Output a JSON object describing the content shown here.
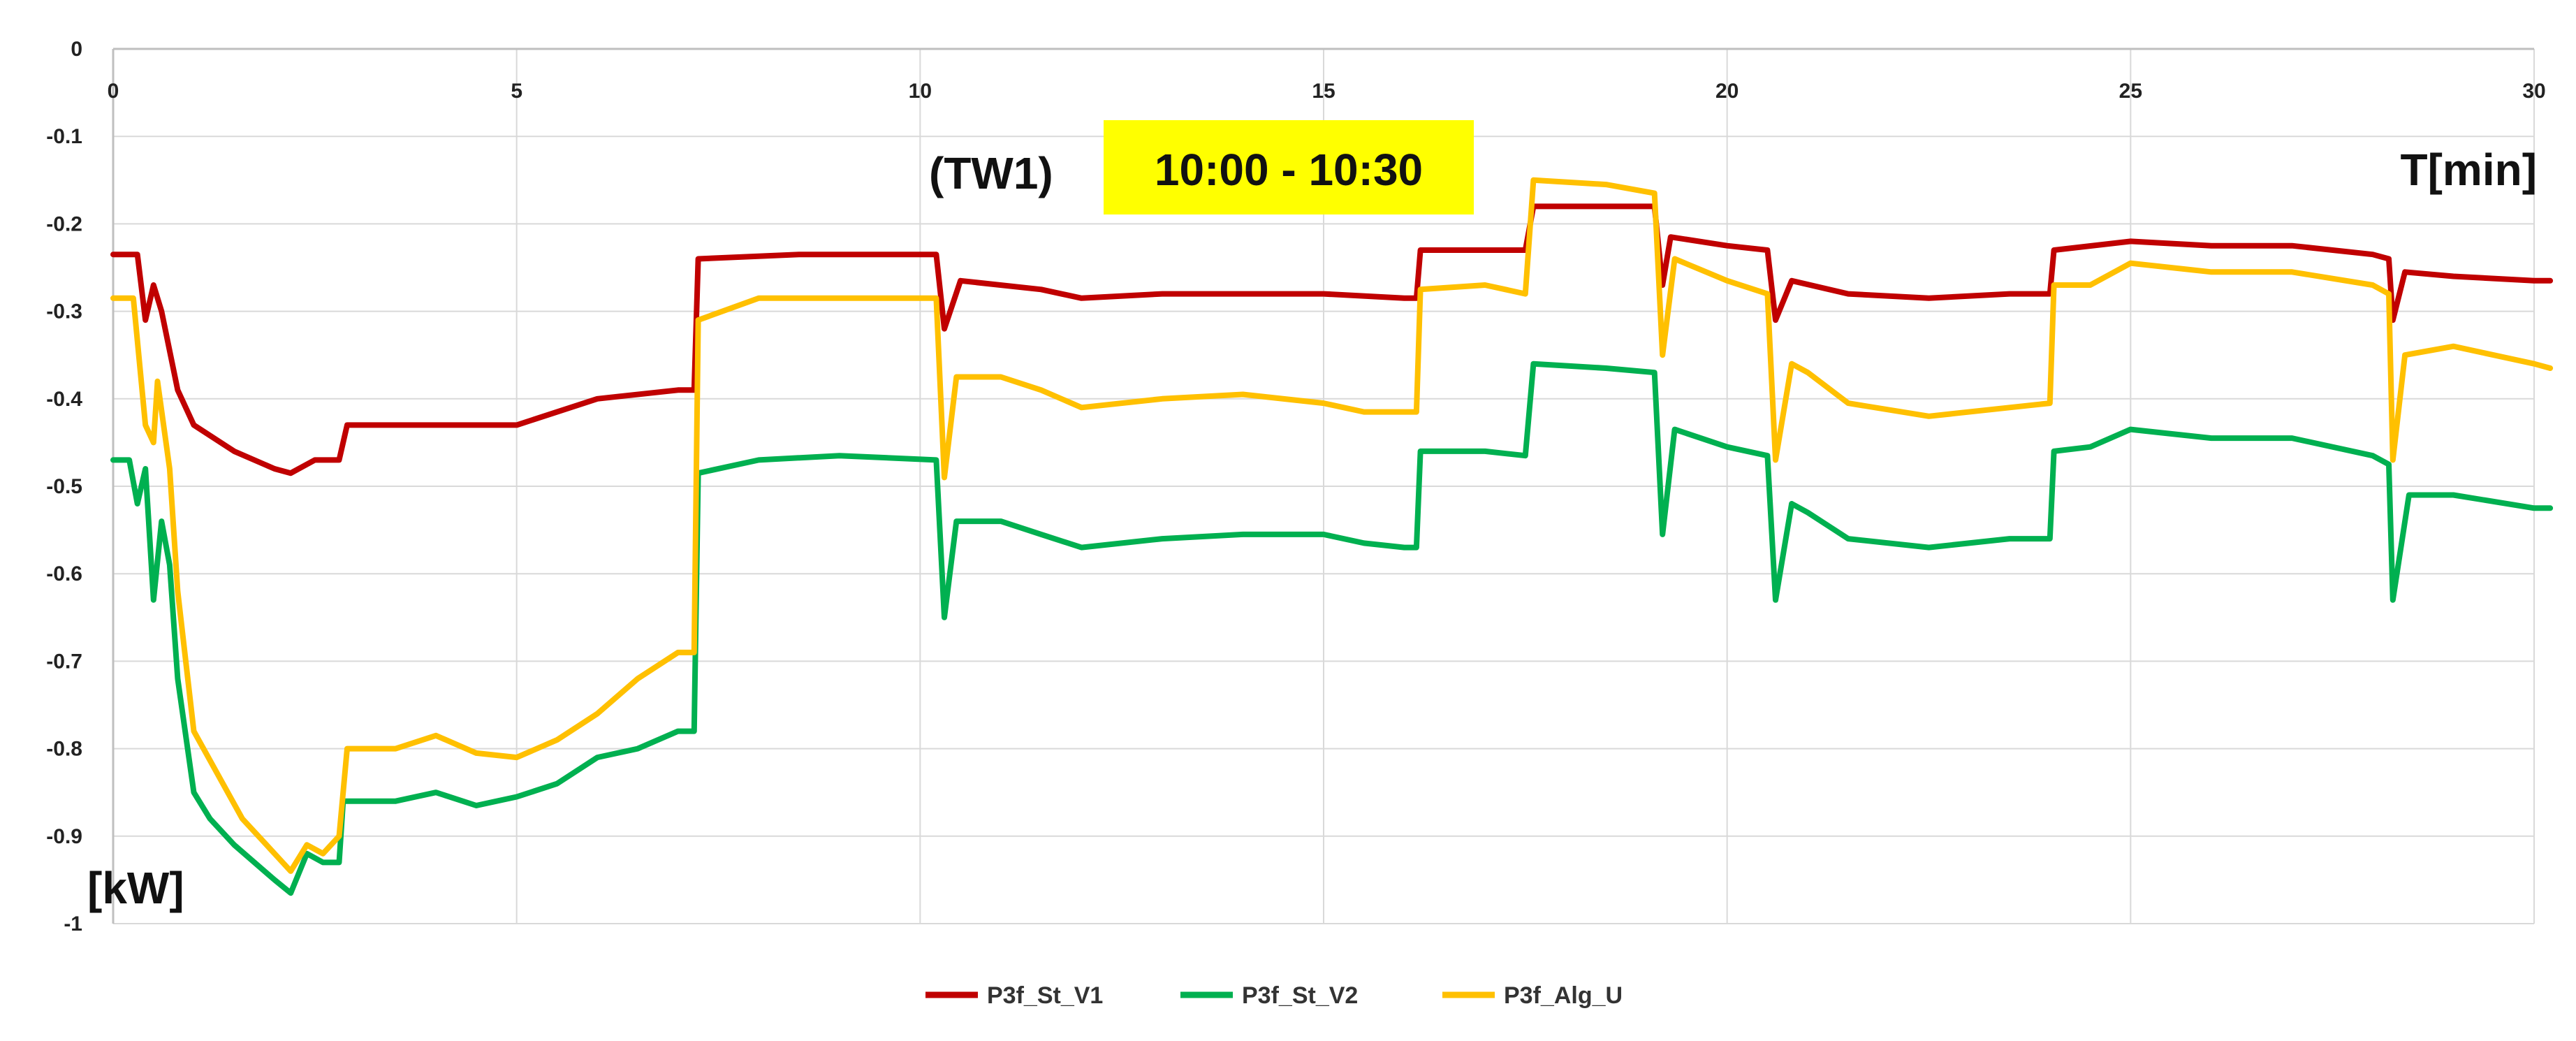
{
  "chart_data": {
    "type": "line",
    "window_label": "(TW1)",
    "time_badge": "10:00 - 10:30",
    "xlabel": "T[min]",
    "ylabel": "[kW]",
    "xlim": [
      0,
      30
    ],
    "ylim": [
      -1,
      0
    ],
    "x_ticks": [
      0,
      5,
      10,
      15,
      20,
      25,
      30
    ],
    "y_ticks": [
      0,
      -0.1,
      -0.2,
      -0.3,
      -0.4,
      -0.5,
      -0.6,
      -0.7,
      -0.8,
      -0.9,
      -1
    ],
    "y_tick_labels": [
      "0",
      "-0.1",
      "-0.2",
      "-0.3",
      "-0.4",
      "-0.5",
      "-0.6",
      "-0.7",
      "-0.8",
      "-0.9",
      "-1"
    ],
    "grid": true,
    "legend_position": "bottom",
    "series": [
      {
        "name": "P3f_St_V1",
        "color": "#c00000",
        "points": [
          [
            0,
            -0.235
          ],
          [
            0.3,
            -0.235
          ],
          [
            0.4,
            -0.31
          ],
          [
            0.5,
            -0.27
          ],
          [
            0.6,
            -0.3
          ],
          [
            0.8,
            -0.39
          ],
          [
            1.0,
            -0.43
          ],
          [
            1.5,
            -0.46
          ],
          [
            2.0,
            -0.48
          ],
          [
            2.2,
            -0.485
          ],
          [
            2.5,
            -0.47
          ],
          [
            2.8,
            -0.47
          ],
          [
            2.9,
            -0.43
          ],
          [
            4.0,
            -0.43
          ],
          [
            5.0,
            -0.43
          ],
          [
            6.0,
            -0.4
          ],
          [
            7.0,
            -0.39
          ],
          [
            7.2,
            -0.39
          ],
          [
            7.25,
            -0.24
          ],
          [
            8.5,
            -0.235
          ],
          [
            9.5,
            -0.235
          ],
          [
            10.2,
            -0.235
          ],
          [
            10.3,
            -0.32
          ],
          [
            10.5,
            -0.265
          ],
          [
            11.5,
            -0.275
          ],
          [
            12.0,
            -0.285
          ],
          [
            13.0,
            -0.28
          ],
          [
            14.0,
            -0.28
          ],
          [
            15.0,
            -0.28
          ],
          [
            16.0,
            -0.285
          ],
          [
            16.15,
            -0.285
          ],
          [
            16.2,
            -0.23
          ],
          [
            17.0,
            -0.23
          ],
          [
            17.5,
            -0.23
          ],
          [
            17.6,
            -0.18
          ],
          [
            18.5,
            -0.18
          ],
          [
            19.1,
            -0.18
          ],
          [
            19.2,
            -0.27
          ],
          [
            19.3,
            -0.215
          ],
          [
            20.0,
            -0.225
          ],
          [
            20.5,
            -0.23
          ],
          [
            20.6,
            -0.31
          ],
          [
            20.8,
            -0.265
          ],
          [
            21.5,
            -0.28
          ],
          [
            22.5,
            -0.285
          ],
          [
            23.5,
            -0.28
          ],
          [
            24.0,
            -0.28
          ],
          [
            24.05,
            -0.23
          ],
          [
            25.0,
            -0.22
          ],
          [
            26.0,
            -0.225
          ],
          [
            27.0,
            -0.225
          ],
          [
            28.0,
            -0.235
          ],
          [
            28.2,
            -0.24
          ],
          [
            28.25,
            -0.31
          ],
          [
            28.4,
            -0.255
          ],
          [
            29.0,
            -0.26
          ],
          [
            30.0,
            -0.265
          ],
          [
            30.2,
            -0.265
          ]
        ]
      },
      {
        "name": "P3f_St_V2",
        "color": "#00b050",
        "points": [
          [
            0,
            -0.47
          ],
          [
            0.2,
            -0.47
          ],
          [
            0.3,
            -0.52
          ],
          [
            0.4,
            -0.48
          ],
          [
            0.5,
            -0.63
          ],
          [
            0.6,
            -0.54
          ],
          [
            0.7,
            -0.59
          ],
          [
            0.8,
            -0.72
          ],
          [
            1.0,
            -0.85
          ],
          [
            1.2,
            -0.88
          ],
          [
            1.5,
            -0.91
          ],
          [
            2.0,
            -0.95
          ],
          [
            2.2,
            -0.965
          ],
          [
            2.4,
            -0.92
          ],
          [
            2.6,
            -0.93
          ],
          [
            2.8,
            -0.93
          ],
          [
            2.85,
            -0.86
          ],
          [
            3.5,
            -0.86
          ],
          [
            4.0,
            -0.85
          ],
          [
            4.5,
            -0.865
          ],
          [
            5.0,
            -0.855
          ],
          [
            5.5,
            -0.84
          ],
          [
            6.0,
            -0.81
          ],
          [
            6.5,
            -0.8
          ],
          [
            7.0,
            -0.78
          ],
          [
            7.2,
            -0.78
          ],
          [
            7.25,
            -0.485
          ],
          [
            8.0,
            -0.47
          ],
          [
            9.0,
            -0.465
          ],
          [
            10.2,
            -0.47
          ],
          [
            10.3,
            -0.65
          ],
          [
            10.45,
            -0.54
          ],
          [
            11.0,
            -0.54
          ],
          [
            11.5,
            -0.555
          ],
          [
            12.0,
            -0.57
          ],
          [
            13.0,
            -0.56
          ],
          [
            14.0,
            -0.555
          ],
          [
            15.0,
            -0.555
          ],
          [
            15.5,
            -0.565
          ],
          [
            16.0,
            -0.57
          ],
          [
            16.15,
            -0.57
          ],
          [
            16.2,
            -0.46
          ],
          [
            17.0,
            -0.46
          ],
          [
            17.5,
            -0.465
          ],
          [
            17.6,
            -0.36
          ],
          [
            18.5,
            -0.365
          ],
          [
            19.1,
            -0.37
          ],
          [
            19.2,
            -0.555
          ],
          [
            19.35,
            -0.435
          ],
          [
            20.0,
            -0.455
          ],
          [
            20.5,
            -0.465
          ],
          [
            20.6,
            -0.63
          ],
          [
            20.8,
            -0.52
          ],
          [
            21.0,
            -0.53
          ],
          [
            21.5,
            -0.56
          ],
          [
            22.5,
            -0.57
          ],
          [
            23.5,
            -0.56
          ],
          [
            24.0,
            -0.56
          ],
          [
            24.05,
            -0.46
          ],
          [
            24.5,
            -0.455
          ],
          [
            25.0,
            -0.435
          ],
          [
            26.0,
            -0.445
          ],
          [
            27.0,
            -0.445
          ],
          [
            28.0,
            -0.465
          ],
          [
            28.2,
            -0.475
          ],
          [
            28.25,
            -0.63
          ],
          [
            28.45,
            -0.51
          ],
          [
            29.0,
            -0.51
          ],
          [
            30.0,
            -0.525
          ],
          [
            30.2,
            -0.525
          ]
        ]
      },
      {
        "name": "P3f_Alg_U",
        "color": "#ffc000",
        "points": [
          [
            0,
            -0.285
          ],
          [
            0.25,
            -0.285
          ],
          [
            0.4,
            -0.43
          ],
          [
            0.5,
            -0.45
          ],
          [
            0.55,
            -0.38
          ],
          [
            0.7,
            -0.48
          ],
          [
            0.8,
            -0.62
          ],
          [
            1.0,
            -0.78
          ],
          [
            1.3,
            -0.83
          ],
          [
            1.6,
            -0.88
          ],
          [
            2.0,
            -0.92
          ],
          [
            2.2,
            -0.94
          ],
          [
            2.4,
            -0.91
          ],
          [
            2.6,
            -0.92
          ],
          [
            2.8,
            -0.9
          ],
          [
            2.9,
            -0.8
          ],
          [
            3.5,
            -0.8
          ],
          [
            4.0,
            -0.785
          ],
          [
            4.5,
            -0.805
          ],
          [
            5.0,
            -0.81
          ],
          [
            5.5,
            -0.79
          ],
          [
            6.0,
            -0.76
          ],
          [
            6.5,
            -0.72
          ],
          [
            7.0,
            -0.69
          ],
          [
            7.2,
            -0.69
          ],
          [
            7.25,
            -0.31
          ],
          [
            8.0,
            -0.285
          ],
          [
            9.0,
            -0.285
          ],
          [
            10.2,
            -0.285
          ],
          [
            10.3,
            -0.49
          ],
          [
            10.45,
            -0.375
          ],
          [
            11.0,
            -0.375
          ],
          [
            11.5,
            -0.39
          ],
          [
            12.0,
            -0.41
          ],
          [
            13.0,
            -0.4
          ],
          [
            14.0,
            -0.395
          ],
          [
            15.0,
            -0.405
          ],
          [
            15.5,
            -0.415
          ],
          [
            16.0,
            -0.415
          ],
          [
            16.15,
            -0.415
          ],
          [
            16.2,
            -0.275
          ],
          [
            17.0,
            -0.27
          ],
          [
            17.5,
            -0.28
          ],
          [
            17.6,
            -0.15
          ],
          [
            18.5,
            -0.155
          ],
          [
            19.1,
            -0.165
          ],
          [
            19.2,
            -0.35
          ],
          [
            19.35,
            -0.24
          ],
          [
            20.0,
            -0.265
          ],
          [
            20.5,
            -0.28
          ],
          [
            20.6,
            -0.47
          ],
          [
            20.8,
            -0.36
          ],
          [
            21.0,
            -0.37
          ],
          [
            21.5,
            -0.405
          ],
          [
            22.5,
            -0.42
          ],
          [
            23.5,
            -0.41
          ],
          [
            24.0,
            -0.405
          ],
          [
            24.05,
            -0.27
          ],
          [
            24.5,
            -0.27
          ],
          [
            25.0,
            -0.245
          ],
          [
            26.0,
            -0.255
          ],
          [
            27.0,
            -0.255
          ],
          [
            28.0,
            -0.27
          ],
          [
            28.2,
            -0.28
          ],
          [
            28.25,
            -0.47
          ],
          [
            28.4,
            -0.35
          ],
          [
            29.0,
            -0.34
          ],
          [
            30.0,
            -0.36
          ],
          [
            30.2,
            -0.365
          ]
        ]
      }
    ]
  }
}
